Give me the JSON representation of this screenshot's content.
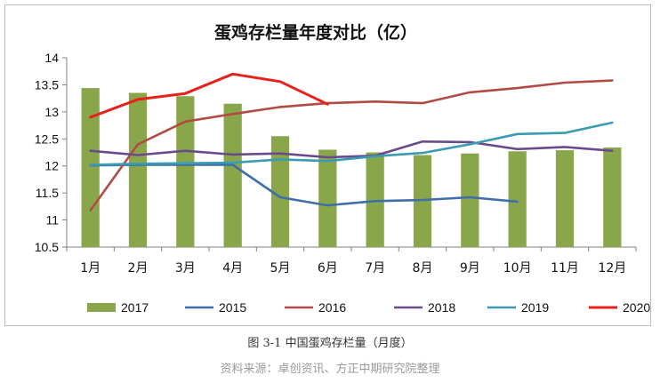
{
  "chart_data": {
    "type": "bar+line",
    "title": "蛋鸡存栏量年度对比（亿）",
    "categories": [
      "1月",
      "2月",
      "3月",
      "4月",
      "5月",
      "6月",
      "7月",
      "8月",
      "9月",
      "10月",
      "11月",
      "12月"
    ],
    "ylim": [
      10.5,
      14
    ],
    "yticks": [
      "10.5",
      "11",
      "11.5",
      "12",
      "12.5",
      "13",
      "13.5",
      "14"
    ],
    "grid": false,
    "legend_position": "bottom",
    "bar_series": {
      "name": "2017",
      "color": "#8aa64a",
      "values": [
        13.44,
        13.35,
        13.29,
        13.15,
        12.55,
        12.3,
        12.25,
        12.2,
        12.23,
        12.27,
        12.29,
        12.34
      ]
    },
    "line_series": [
      {
        "name": "2015",
        "color": "#3f6fa8",
        "values": [
          12.01,
          12.02,
          12.02,
          12.02,
          11.42,
          11.27,
          11.35,
          11.37,
          11.42,
          11.34,
          null,
          null
        ]
      },
      {
        "name": "2016",
        "color": "#b24b45",
        "values": [
          11.18,
          12.4,
          12.82,
          12.96,
          13.09,
          13.16,
          13.19,
          13.16,
          13.36,
          13.44,
          13.54,
          13.58
        ]
      },
      {
        "name": "2018",
        "color": "#6b4a8c",
        "values": [
          12.28,
          12.2,
          12.28,
          12.21,
          12.23,
          12.16,
          12.19,
          12.45,
          12.44,
          12.31,
          12.35,
          12.28
        ]
      },
      {
        "name": "2019",
        "color": "#3a9bb2",
        "values": [
          12.02,
          12.04,
          12.05,
          12.06,
          12.12,
          12.09,
          12.18,
          12.24,
          12.4,
          12.59,
          12.61,
          12.8
        ]
      },
      {
        "name": "2020",
        "color": "#e8201c",
        "values": [
          12.9,
          13.23,
          13.34,
          13.7,
          13.56,
          13.14,
          null,
          null,
          null,
          null,
          null,
          null
        ]
      }
    ]
  },
  "caption": "图 3-1 中国蛋鸡存栏量（月度）",
  "source": "资料来源：卓创资讯、方正中期研究院整理"
}
